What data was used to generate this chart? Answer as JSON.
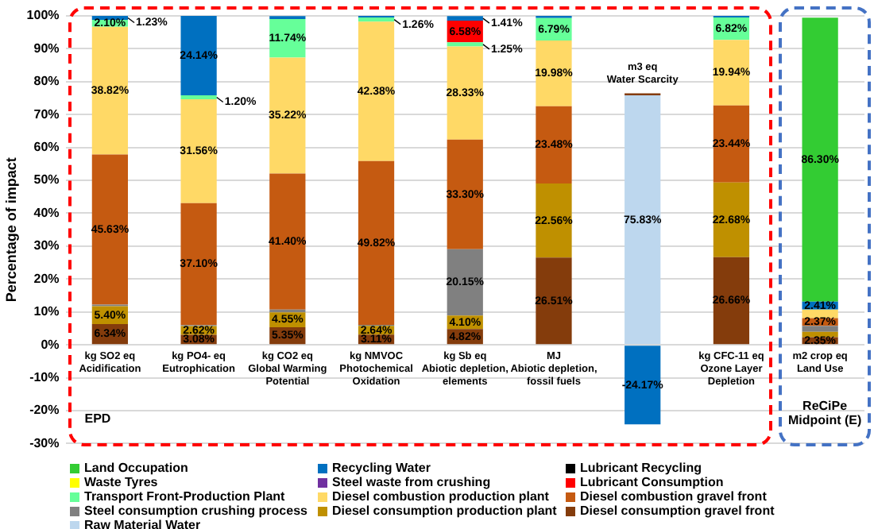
{
  "chart_data": {
    "type": "bar",
    "stacked": true,
    "ylabel": "Percentage of impact",
    "categories": [
      "kg SO2 eq\nAcidification",
      "kg PO4- eq\nEutrophication",
      "kg CO2 eq\nGlobal Warming\nPotential",
      "kg NMVOC\nPhotochemical\nOxidation",
      "kg Sb eq\nAbiotic depletion,\nelements",
      "MJ\nAbiotic depletion,\nfossil fuels",
      "m3 eq\nWater Scarcity",
      "kg CFC-11 eq\nOzone Layer\nDepletion",
      "m2 crop eq\nLand Use"
    ],
    "ylim": [
      -30,
      100
    ],
    "yticks": [
      {
        "value": -30,
        "label": "-30%"
      },
      {
        "value": -20,
        "label": "-20%"
      },
      {
        "value": -10,
        "label": "-10%"
      },
      {
        "value": 0,
        "label": "0%"
      },
      {
        "value": 10,
        "label": "10%"
      },
      {
        "value": 20,
        "label": "20%"
      },
      {
        "value": 30,
        "label": "30%"
      },
      {
        "value": 40,
        "label": "40%"
      },
      {
        "value": 50,
        "label": "50%"
      },
      {
        "value": 60,
        "label": "60%"
      },
      {
        "value": 70,
        "label": "70%"
      },
      {
        "value": 80,
        "label": "80%"
      },
      {
        "value": 90,
        "label": "90%"
      },
      {
        "value": 100,
        "label": "100%"
      }
    ],
    "grid": "y",
    "legend": "bottom",
    "annotations": [
      "EPD",
      "ReCiPe Midpoint (E)"
    ],
    "series": [
      {
        "name": "Raw Material Water",
        "color": "#bdd7ee",
        "values": [
          null,
          null,
          null,
          null,
          null,
          null,
          75.83,
          null,
          null
        ],
        "value_labels": [
          null,
          null,
          null,
          null,
          null,
          null,
          "75.83%",
          null,
          null
        ]
      },
      {
        "name": "Diesel consumption gravel front",
        "color": "#843c0c",
        "values": [
          6.34,
          3.08,
          5.35,
          3.11,
          4.82,
          26.51,
          0.6,
          26.66,
          2.35
        ],
        "value_labels": [
          "6.34%",
          "3.08%",
          "5.35%",
          "3.11%",
          "4.82%",
          "26.51%",
          null,
          "26.66%",
          "2.35%"
        ]
      },
      {
        "name": "Diesel consumption production plant",
        "color": "#bf9000",
        "values": [
          5.4,
          2.62,
          4.55,
          2.64,
          4.1,
          22.56,
          null,
          22.68,
          1.6
        ],
        "value_labels": [
          "5.40%",
          "2.62%",
          "4.55%",
          "2.64%",
          "4.10%",
          "22.56%",
          null,
          "22.68%",
          null
        ]
      },
      {
        "name": "Steel consumption crushing process",
        "color": "#808080",
        "values": [
          0.5,
          0.3,
          0.8,
          0.3,
          20.15,
          null,
          null,
          null,
          1.8
        ],
        "value_labels": [
          null,
          null,
          null,
          null,
          "20.15%",
          null,
          null,
          null,
          null
        ]
      },
      {
        "name": "Diesel combustion gravel front",
        "color": "#c55a11",
        "values": [
          45.63,
          37.1,
          41.4,
          49.82,
          33.3,
          23.48,
          null,
          23.44,
          2.37
        ],
        "value_labels": [
          "45.63%",
          "37.10%",
          "41.40%",
          "49.82%",
          "33.30%",
          "23.48%",
          null,
          "23.44%",
          "2.37%"
        ]
      },
      {
        "name": "Diesel combustion production plant",
        "color": "#ffd966",
        "values": [
          38.82,
          31.56,
          35.22,
          42.38,
          28.33,
          19.98,
          null,
          19.94,
          2.6
        ],
        "value_labels": [
          "38.82%",
          "31.56%",
          "35.22%",
          "42.38%",
          "28.33%",
          "19.98%",
          null,
          "19.94%",
          null
        ]
      },
      {
        "name": "Transport Front-Production Plant",
        "color": "#66ff99",
        "values": [
          2.1,
          1.2,
          11.74,
          1.26,
          1.25,
          6.79,
          null,
          6.82,
          null
        ],
        "value_labels": [
          "2.10%",
          "1.20%",
          "11.74%",
          "1.26%",
          "1.25%",
          "6.79%",
          null,
          "6.82%",
          null
        ]
      },
      {
        "name": "Lubricant Consumption",
        "color": "#ff0000",
        "values": [
          null,
          null,
          null,
          null,
          6.58,
          null,
          null,
          null,
          null
        ],
        "value_labels": [
          null,
          null,
          null,
          null,
          "6.58%",
          null,
          null,
          null,
          null
        ]
      },
      {
        "name": "Steel waste from crushing",
        "color": "#7030a0",
        "values": [
          null,
          null,
          null,
          null,
          null,
          null,
          null,
          null,
          null
        ]
      },
      {
        "name": "Waste Tyres",
        "color": "#ffff00",
        "values": [
          null,
          null,
          null,
          null,
          null,
          null,
          null,
          null,
          null
        ]
      },
      {
        "name": "Lubricant Recycling",
        "color": "#000000",
        "values": [
          null,
          null,
          null,
          null,
          null,
          null,
          null,
          null,
          null
        ]
      },
      {
        "name": "Recycling Water",
        "color": "#0070c0",
        "values": [
          1.23,
          24.14,
          0.9,
          0.5,
          1.41,
          0.7,
          -24.17,
          0.5,
          2.41
        ],
        "value_labels": [
          "1.23%",
          "24.14%",
          null,
          null,
          "1.41%",
          null,
          "-24.17%",
          null,
          "2.41%"
        ]
      },
      {
        "name": "Land Occupation",
        "color": "#33cc33",
        "values": [
          null,
          null,
          null,
          null,
          null,
          null,
          null,
          null,
          86.3
        ],
        "value_labels": [
          null,
          null,
          null,
          null,
          null,
          null,
          null,
          null,
          "86.30%"
        ]
      }
    ]
  }
}
